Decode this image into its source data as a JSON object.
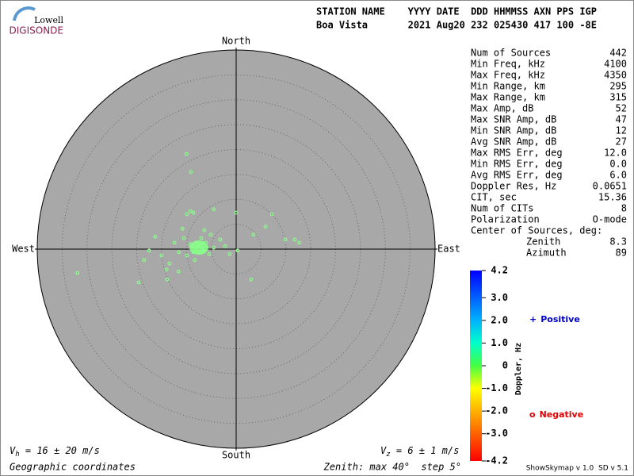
{
  "logo": {
    "top": "Lowell",
    "bottom": "DIGISONDE"
  },
  "header": {
    "line1": "STATION NAME    YYYY DATE  DDD HHMMSS AXN PPS IGP",
    "line2": "Boa Vista       2021 Aug20 232 025430 417 100 -8E"
  },
  "stats": [
    {
      "label": "Num of Sources",
      "value": "442"
    },
    {
      "label": "Min Freq, kHz",
      "value": "4100"
    },
    {
      "label": "Max Freq, kHz",
      "value": "4350"
    },
    {
      "label": "Min Range, km",
      "value": "295"
    },
    {
      "label": "Max Range, km",
      "value": "315"
    },
    {
      "label": "Max Amp, dB",
      "value": "52"
    },
    {
      "label": "Max SNR Amp, dB",
      "value": "47"
    },
    {
      "label": "Min SNR Amp, dB",
      "value": "12"
    },
    {
      "label": "Avg SNR Amp, dB",
      "value": "27"
    },
    {
      "label": "Max RMS Err, deg",
      "value": "12.0"
    },
    {
      "label": "Min RMS Err, deg",
      "value": "0.0"
    },
    {
      "label": "Avg RMS Err, deg",
      "value": "6.0"
    },
    {
      "label": "Doppler Res, Hz",
      "value": "0.0651"
    },
    {
      "label": "CIT, sec",
      "value": "15.36"
    },
    {
      "label": "Num of CITs",
      "value": "8"
    },
    {
      "label": "Polarization",
      "value": "O-mode"
    }
  ],
  "center_of_sources": {
    "title": "Center of Sources, deg:",
    "rows": [
      {
        "label": "Zenith",
        "value": "8.3"
      },
      {
        "label": "Azimuth",
        "value": "89"
      }
    ]
  },
  "chart_data": {
    "type": "scatter",
    "directions": {
      "north": "North",
      "south": "South",
      "east": "East",
      "west": "West"
    },
    "x": [
      -10.0,
      -9.1,
      -9.2,
      -9.9,
      -8.6,
      -4.5,
      0,
      7.2,
      5.9,
      3.5,
      9.9,
      11.8,
      12.7,
      -31.9,
      -19.6,
      -18.5,
      -16.3,
      -13.9,
      -11.6,
      3.0,
      0.3,
      -8,
      -7.3,
      -8.6,
      -6.7,
      -9.2,
      -6.1,
      -9.9,
      -5.4,
      -10.5,
      -4.5,
      -11.5,
      -2.2,
      -7.0,
      -8.3,
      -12.4,
      -15.0,
      -17.5,
      -13.4,
      -5.1,
      -3.2,
      -1.3,
      -10.8,
      -6.4,
      -14.0
    ],
    "y": [
      19.1,
      15.5,
      7.6,
      7.0,
      7.3,
      8.0,
      7.3,
      7.0,
      4.5,
      2.9,
      1.9,
      1.9,
      1.3,
      -4.8,
      -6.7,
      -2.2,
      2.5,
      -6.1,
      -4.5,
      -6.1,
      -0.3,
      0,
      0.6,
      -0.6,
      -0.3,
      1.0,
      1.3,
      -1.3,
      -1.0,
      2.2,
      0.3,
      -0.6,
      0.6,
      2.2,
      -2.2,
      1.3,
      -1.3,
      -0.3,
      -2.9,
      2.9,
      1.9,
      -1.0,
      4.1,
      3.8,
      -4.1
    ],
    "color": "#88ff88",
    "xlim": [
      -40,
      40
    ],
    "ylim": [
      -40,
      40
    ],
    "rings": [
      5,
      10,
      15,
      20,
      25,
      30,
      35
    ]
  },
  "colorbar": {
    "label": "Doppler, Hz",
    "lim": [
      -4.2,
      4.2
    ],
    "ticks": [
      4.2,
      {
        "value": 3,
        "label": "3.0"
      },
      {
        "value": 2,
        "label": "2.0"
      },
      {
        "value": 1,
        "label": "1.0"
      },
      0,
      {
        "value": -1,
        "label": "-1.0"
      },
      {
        "value": -2,
        "label": "-2.0"
      },
      {
        "value": -3,
        "label": "-3.0"
      },
      -4.2
    ]
  },
  "legend": {
    "positive": {
      "symbol": "+",
      "text": "Positive",
      "color": "#0000cc"
    },
    "negative": {
      "symbol": "o",
      "text": "Negative",
      "color": "#dd0000"
    }
  },
  "footer": {
    "vh": {
      "symbol": "V",
      "sub": "h",
      "text": " = 16 ± 20 m/s"
    },
    "vz": {
      "symbol": "V",
      "sub": "z",
      "text": " = 6 ± 1 m/s"
    },
    "coords": "Geographic coordinates",
    "zenith": "Zenith: max 40°  step 5°",
    "version": "ShowSkymap v 1.0  SD v 5.1"
  }
}
